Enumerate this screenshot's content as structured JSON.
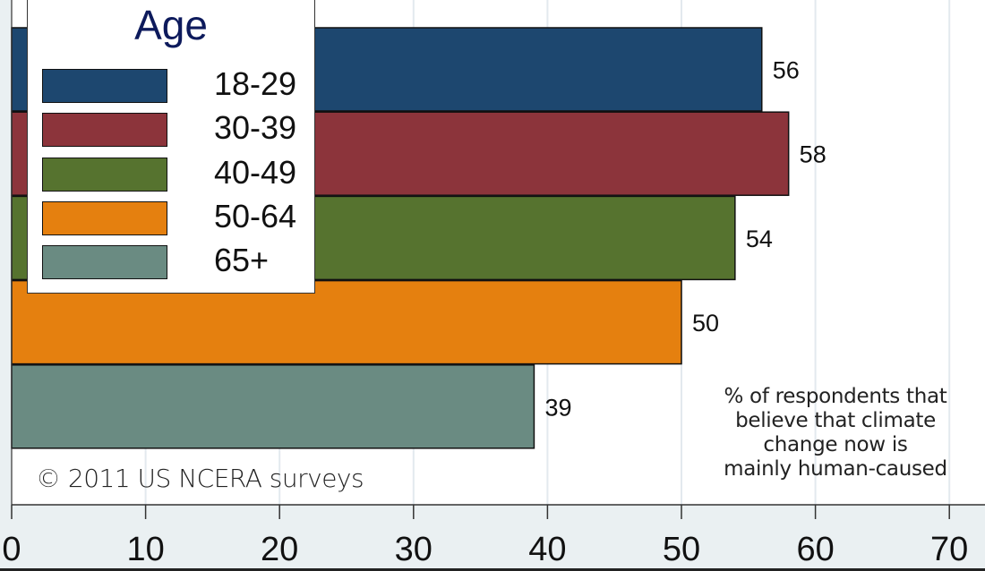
{
  "chart_data": {
    "type": "bar",
    "orientation": "horizontal",
    "title": "",
    "legend_title": "Age",
    "categories": [
      "18-29",
      "30-39",
      "40-49",
      "50-64",
      "65+"
    ],
    "values": [
      56,
      58,
      54,
      50,
      39
    ],
    "data_labels": [
      "56",
      "58",
      "54",
      "50",
      "39"
    ],
    "colors": [
      "#1d476f",
      "#8c343b",
      "#56732f",
      "#e5800f",
      "#6a8b82"
    ],
    "xlabel": "",
    "ylabel": "",
    "xlim": [
      0,
      70
    ],
    "x_ticks": [
      0,
      10,
      20,
      30,
      40,
      50,
      60,
      70
    ],
    "x_tick_labels": [
      "0",
      "10",
      "20",
      "30",
      "40",
      "50",
      "60",
      "70"
    ],
    "grid": true,
    "legend_position": "top-left",
    "annotation": [
      "% of respondents that",
      "believe that climate",
      "change now is",
      "mainly human-caused"
    ],
    "credit": "© 2011 US NCERA surveys"
  }
}
